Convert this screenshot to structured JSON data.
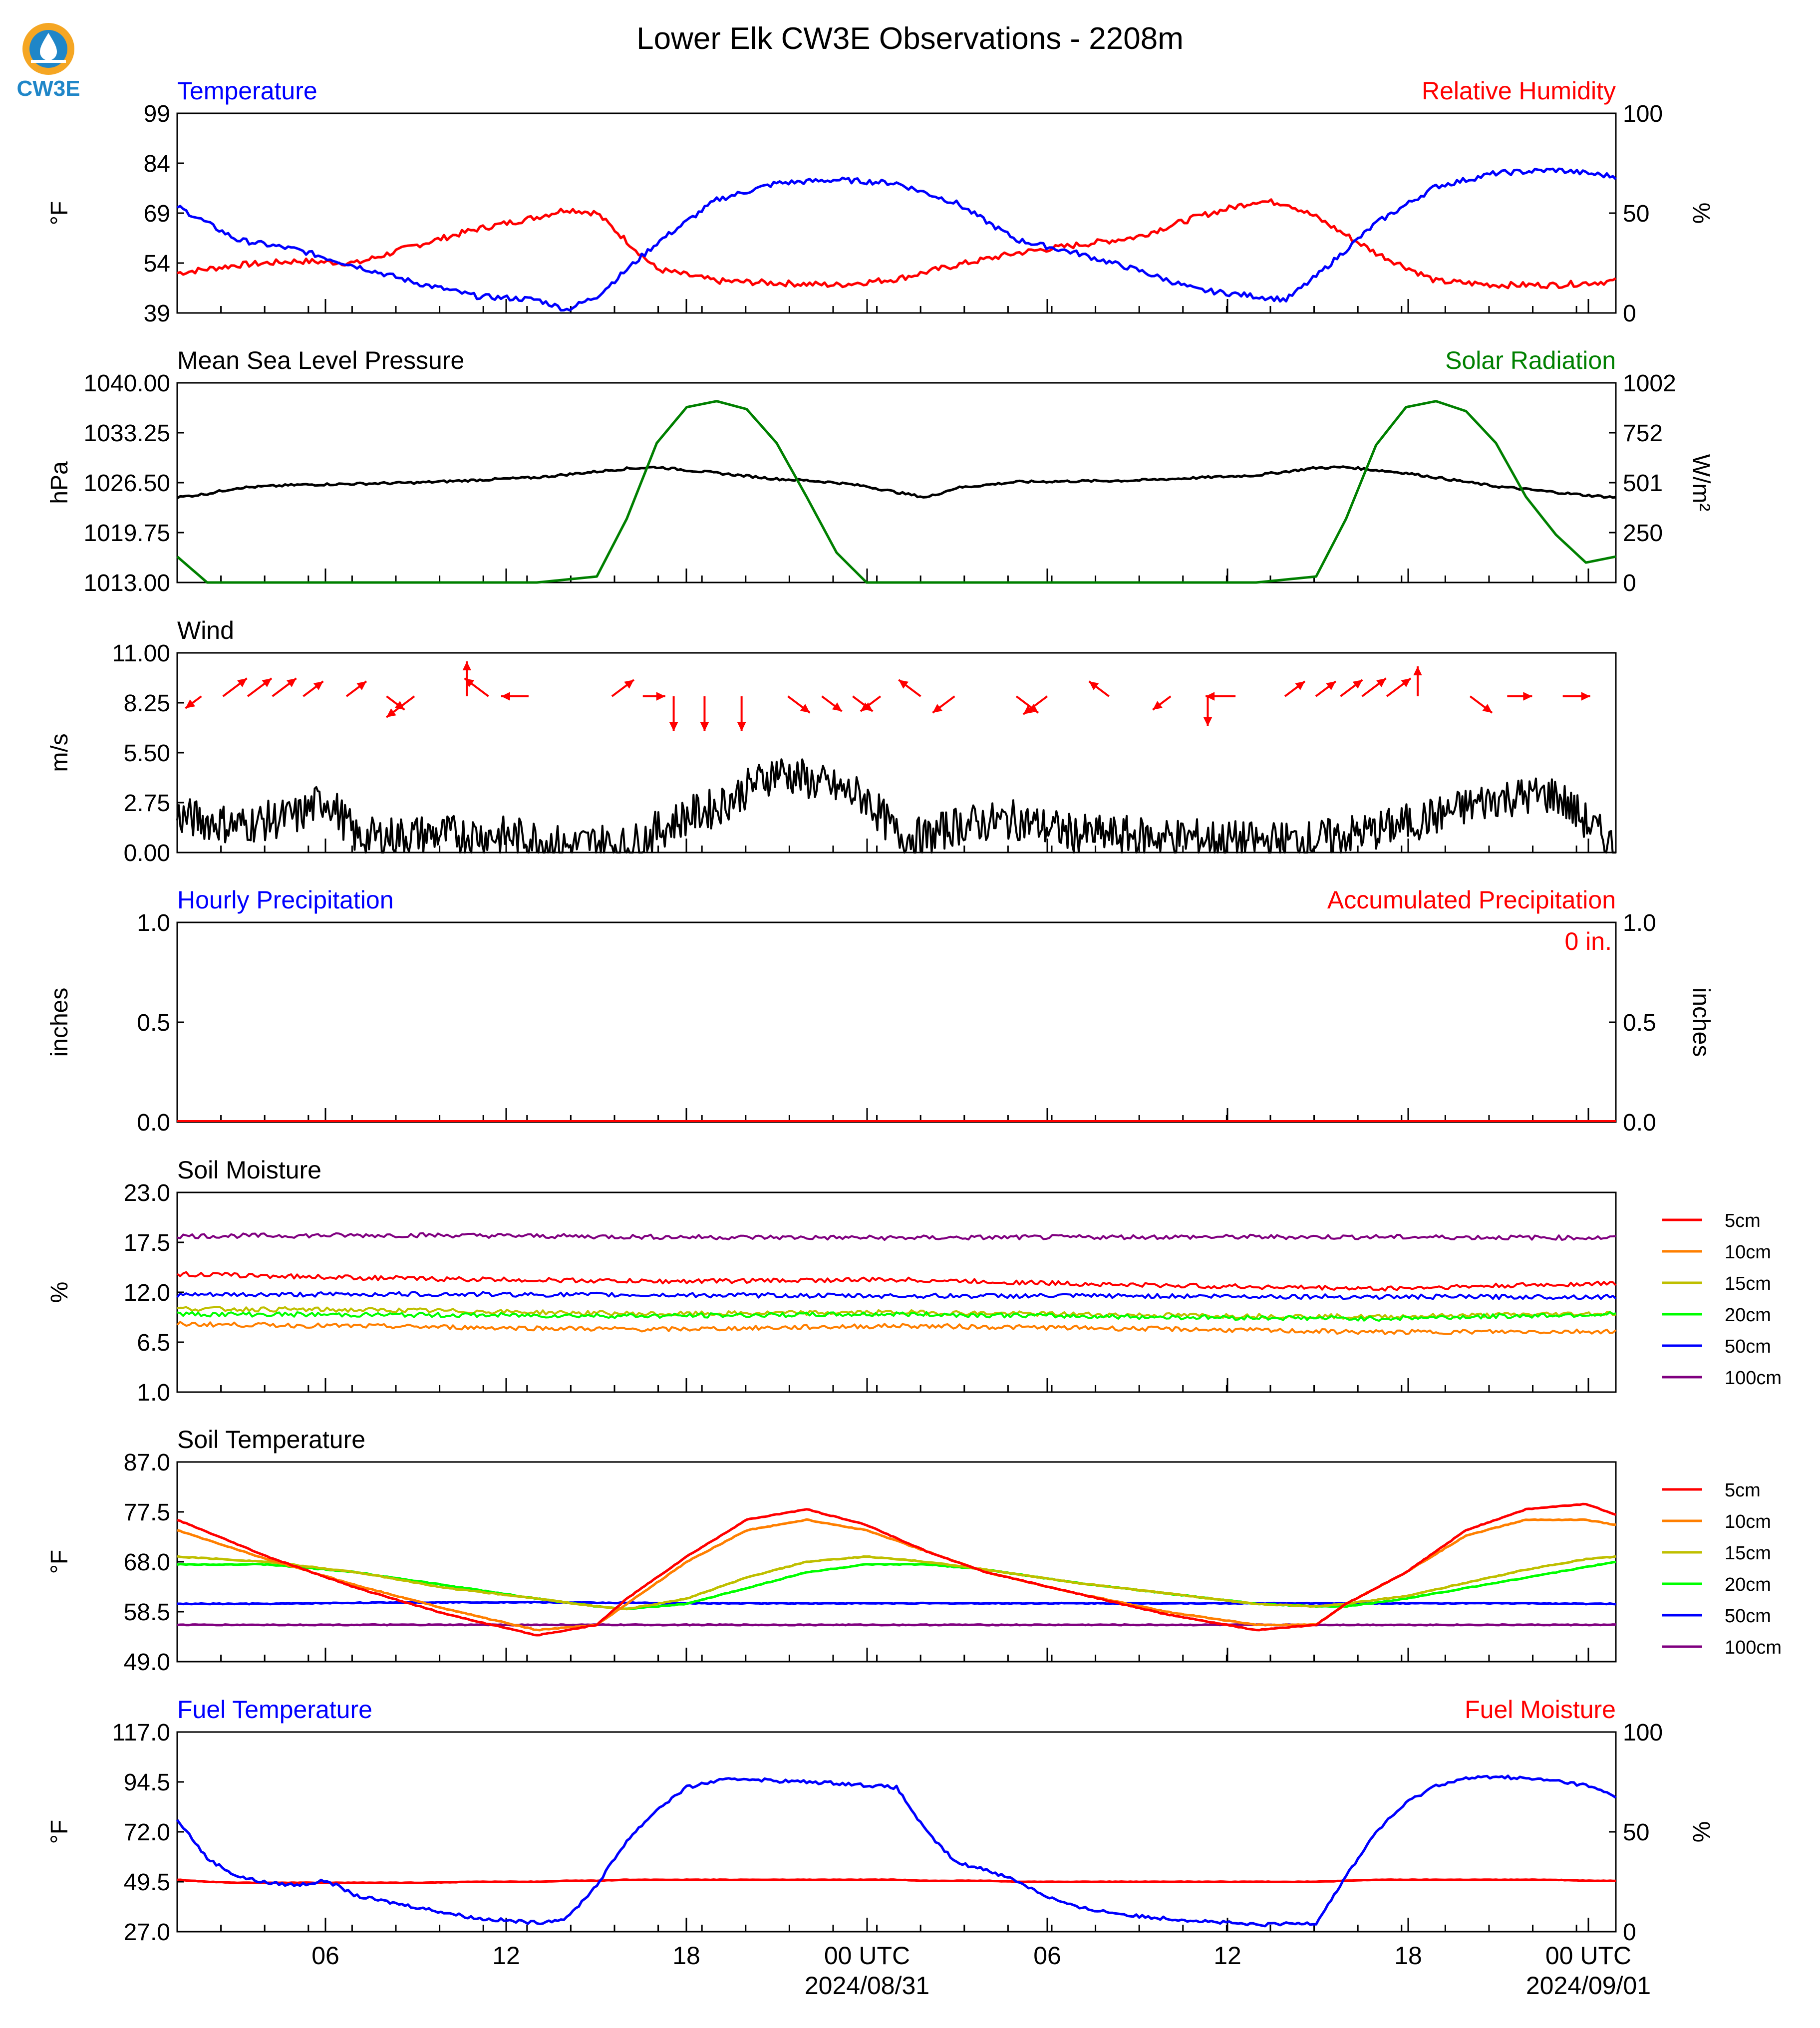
{
  "title": "Lower Elk CW3E Observations - 2208m",
  "logo": {
    "text": "CW3E",
    "icon": "cw3e-logo-icon",
    "ring_color": "#f5a623",
    "water_color": "#1f86c8"
  },
  "x_ticks": [
    "06",
    "12",
    "18",
    "00 UTC",
    "06",
    "12",
    "18",
    "00 UTC"
  ],
  "x_dates": [
    "2024/08/31",
    "2024/09/01"
  ],
  "colors": {
    "blue": "#0000ff",
    "red": "#ff0000",
    "green": "#008000",
    "black": "#000000",
    "d5": "#ff0000",
    "d10": "#ff7f00",
    "d15": "#bfbf00",
    "d20": "#00ff00",
    "d50": "#0000ff",
    "d100": "#800080"
  },
  "panels": {
    "temp": {
      "left_title": "Temperature",
      "right_title": "Relative Humidity",
      "left_unit": "°F",
      "right_unit": "%",
      "left_ticks": [
        "99",
        "84",
        "69",
        "54",
        "39"
      ],
      "right_ticks": [
        "100",
        "50",
        "0"
      ],
      "left_range": [
        39,
        99
      ],
      "right_range": [
        0,
        100
      ]
    },
    "pressure": {
      "left_title": "Mean Sea Level Pressure",
      "right_title": "Solar Radiation",
      "left_unit": "hPa",
      "right_unit": "W/m²",
      "left_ticks": [
        "1040.00",
        "1033.25",
        "1026.50",
        "1019.75",
        "1013.00"
      ],
      "right_ticks": [
        "1002",
        "752",
        "501",
        "250",
        "0"
      ],
      "left_range": [
        1013,
        1040
      ],
      "right_range": [
        0,
        1002
      ]
    },
    "wind": {
      "left_title": "Wind",
      "left_unit": "m/s",
      "left_ticks": [
        "11.00",
        "8.25",
        "5.50",
        "2.75",
        "0.00"
      ],
      "left_range": [
        0,
        11
      ]
    },
    "precip": {
      "left_title": "Hourly Precipitation",
      "right_title": "Accumulated Precipitation",
      "left_unit": "inches",
      "right_unit": "inches",
      "left_ticks": [
        "1.0",
        "0.5",
        "0.0"
      ],
      "right_ticks": [
        "1.0",
        "0.5",
        "0.0"
      ],
      "accum_label": "0 in.",
      "left_range": [
        0,
        1
      ],
      "right_range": [
        0,
        1
      ]
    },
    "soil_moist": {
      "left_title": "Soil Moisture",
      "left_unit": "%",
      "left_ticks": [
        "23.0",
        "17.5",
        "12.0",
        "6.5",
        "1.0"
      ],
      "left_range": [
        1,
        23
      ],
      "legend": [
        "5cm",
        "10cm",
        "15cm",
        "20cm",
        "50cm",
        "100cm"
      ]
    },
    "soil_temp": {
      "left_title": "Soil Temperature",
      "left_unit": "°F",
      "left_ticks": [
        "87.0",
        "77.5",
        "68.0",
        "58.5",
        "49.0"
      ],
      "left_range": [
        49,
        87
      ],
      "legend": [
        "5cm",
        "10cm",
        "15cm",
        "20cm",
        "50cm",
        "100cm"
      ]
    },
    "fuel": {
      "left_title": "Fuel Temperature",
      "right_title": "Fuel Moisture",
      "left_unit": "°F",
      "right_unit": "%",
      "left_ticks": [
        "117.0",
        "94.5",
        "72.0",
        "49.5",
        "27.0"
      ],
      "right_ticks": [
        "100",
        "50",
        "0"
      ],
      "left_range": [
        27,
        117
      ],
      "right_range": [
        0,
        100
      ]
    }
  },
  "chart_data": [
    {
      "type": "line",
      "title": "Temperature / Relative Humidity",
      "x_hours": [
        0,
        2,
        4,
        6,
        8,
        10,
        12,
        13,
        14,
        16,
        18,
        20,
        22,
        24,
        26,
        28,
        30,
        32,
        34,
        36,
        37,
        38,
        40,
        42,
        44,
        46,
        48
      ],
      "series": [
        {
          "name": "Temperature",
          "axis": "left",
          "values": [
            71,
            61,
            58,
            53,
            48,
            44,
            43,
            40,
            44,
            60,
            73,
            78,
            79,
            78,
            72,
            61,
            57,
            52,
            46,
            44,
            43,
            50,
            66,
            77,
            81,
            82,
            80
          ]
        },
        {
          "name": "Relative Humidity",
          "axis": "right",
          "values": [
            20,
            24,
            26,
            25,
            34,
            42,
            48,
            52,
            50,
            22,
            16,
            15,
            14,
            17,
            24,
            30,
            34,
            38,
            48,
            56,
            55,
            48,
            30,
            16,
            14,
            14,
            16
          ]
        }
      ]
    },
    {
      "type": "line",
      "title": "Mean Sea Level Pressure / Solar Radiation",
      "x_hours": [
        0,
        1,
        2,
        4,
        8,
        12,
        14,
        15,
        16,
        17,
        18,
        19,
        20,
        21,
        22,
        23,
        24,
        25,
        26,
        28,
        32,
        36,
        38,
        39,
        40,
        41,
        42,
        43,
        44,
        45,
        46,
        47,
        48
      ],
      "series": [
        {
          "name": "Mean Sea Level Pressure",
          "axis": "left",
          "values": [
            1024.5,
            1025,
            1025.8,
            1026.2,
            1026.5,
            1027.2,
            1028,
            1028.4,
            1028.6,
            1028.2,
            1027.8,
            1027.4,
            1027,
            1026.8,
            1026.5,
            1026,
            1025.2,
            1024.5,
            1025.8,
            1026.6,
            1026.8,
            1027.5,
            1028.5,
            1028.6,
            1028.2,
            1027.8,
            1027.2,
            1026.6,
            1026,
            1025.6,
            1025.2,
            1024.8,
            1024.5
          ]
        },
        {
          "name": "Solar Radiation",
          "axis": "right",
          "values": [
            130,
            0,
            0,
            0,
            0,
            0,
            30,
            320,
            700,
            880,
            910,
            870,
            700,
            430,
            150,
            0,
            0,
            0,
            0,
            0,
            0,
            0,
            30,
            320,
            690,
            880,
            910,
            860,
            700,
            430,
            240,
            100,
            130
          ]
        }
      ]
    },
    {
      "type": "line",
      "title": "Wind",
      "x_hours": [
        0,
        2,
        4,
        5,
        6,
        8,
        10,
        12,
        13,
        14,
        15,
        16,
        17,
        18,
        19,
        20,
        21,
        22,
        23,
        24,
        25,
        26,
        28,
        30,
        32,
        34,
        36,
        38,
        40,
        42,
        44,
        46,
        48
      ],
      "series": [
        {
          "name": "Wind speed",
          "values": [
            2,
            1.5,
            2,
            3,
            0.8,
            1,
            1,
            0.8,
            0.3,
            0.6,
            0.3,
            1.2,
            2,
            2.5,
            3.5,
            4.5,
            4,
            3.5,
            3,
            1,
            0.8,
            1.5,
            1.8,
            1,
            0.9,
            0.8,
            0.6,
            0.7,
            1.2,
            2,
            3,
            3.2,
            0.2
          ]
        }
      ],
      "arrows_note": "wind direction arrows drawn above speed trace"
    },
    {
      "type": "line",
      "title": "Hourly / Accumulated Precipitation",
      "x_hours": [
        0,
        48
      ],
      "series": [
        {
          "name": "Hourly Precipitation",
          "axis": "left",
          "values": [
            0,
            0
          ]
        },
        {
          "name": "Accumulated Precipitation",
          "axis": "right",
          "values": [
            0,
            0
          ]
        }
      ]
    },
    {
      "type": "line",
      "title": "Soil Moisture",
      "x_hours": [
        0,
        8,
        16,
        24,
        32,
        40,
        48
      ],
      "series": [
        {
          "name": "5cm",
          "values": [
            14,
            13.5,
            13.2,
            13.4,
            12.8,
            12.4,
            13
          ]
        },
        {
          "name": "10cm",
          "values": [
            8.5,
            8.2,
            7.9,
            8.3,
            8,
            7.6,
            7.7
          ]
        },
        {
          "name": "15cm",
          "values": [
            10.2,
            10,
            9.6,
            9.8,
            9.5,
            9.3,
            9.7
          ]
        },
        {
          "name": "20cm",
          "values": [
            9.6,
            9.5,
            9.4,
            9.6,
            9.3,
            9.1,
            9.6
          ]
        },
        {
          "name": "50cm",
          "values": [
            11.7,
            11.8,
            11.7,
            11.6,
            11.6,
            11.5,
            11.5
          ]
        },
        {
          "name": "100cm",
          "values": [
            18.2,
            18.3,
            18.1,
            18,
            18.1,
            18.1,
            18
          ]
        }
      ]
    },
    {
      "type": "line",
      "title": "Soil Temperature",
      "x_hours": [
        0,
        3,
        6,
        9,
        12,
        14,
        15,
        17,
        19,
        21,
        23,
        25,
        27,
        30,
        33,
        36,
        38,
        39,
        41,
        43,
        45,
        47,
        48
      ],
      "series": [
        {
          "name": "5cm",
          "values": [
            76,
            69,
            63,
            58,
            54,
            56,
            61,
            69,
            76,
            78,
            75,
            70,
            66,
            62,
            58,
            55,
            56,
            60,
            66,
            74,
            78,
            79,
            77
          ]
        },
        {
          "name": "10cm",
          "values": [
            74,
            68.5,
            63.5,
            59,
            55,
            56,
            60,
            68,
            74,
            76,
            74,
            70,
            66,
            62,
            58.5,
            56,
            56,
            60,
            66,
            73,
            76,
            76,
            75
          ]
        },
        {
          "name": "15cm",
          "values": [
            69,
            68,
            66,
            63,
            61,
            59.5,
            59,
            61,
            65,
            68,
            69,
            68,
            66.5,
            64,
            62,
            60,
            59.5,
            60,
            61.5,
            64,
            66.5,
            68.5,
            69
          ]
        },
        {
          "name": "20cm",
          "values": [
            67.5,
            67.5,
            66,
            63.5,
            61,
            59.5,
            59,
            60,
            63,
            66,
            67.5,
            67.5,
            66.5,
            64,
            62,
            60,
            59.5,
            59.5,
            61,
            63,
            65,
            67,
            68
          ]
        },
        {
          "name": "50cm",
          "values": [
            60,
            60,
            60.2,
            60.3,
            60.3,
            60.2,
            60.2,
            60.1,
            60.1,
            60.1,
            60.1,
            60.1,
            60.1,
            60.1,
            60.1,
            60.1,
            60.1,
            60.1,
            60.1,
            60.1,
            60.1,
            60,
            60
          ]
        },
        {
          "name": "100cm",
          "values": [
            56,
            56,
            56,
            56,
            56,
            56,
            56,
            56,
            56,
            56,
            56,
            56,
            56,
            56,
            56,
            56,
            56,
            56,
            56,
            56,
            56,
            56,
            56
          ]
        }
      ]
    },
    {
      "type": "line",
      "title": "Fuel Temperature / Fuel Moisture",
      "x_hours": [
        0,
        1,
        2,
        3,
        4,
        5,
        6,
        8,
        10,
        12,
        13,
        14,
        15,
        16,
        17,
        18,
        19,
        20,
        22,
        24,
        25,
        26,
        27,
        28,
        29,
        30,
        32,
        34,
        36,
        38,
        39,
        40,
        41,
        42,
        43,
        44,
        46,
        47,
        48
      ],
      "series": [
        {
          "name": "Fuel Temperature",
          "axis": "left",
          "values": [
            78,
            60,
            52,
            49,
            48,
            50,
            43,
            38,
            33,
            31,
            33,
            48,
            68,
            82,
            92,
            95,
            96,
            95,
            94,
            92,
            72,
            58,
            55,
            50,
            43,
            38,
            34,
            32,
            30,
            31,
            52,
            72,
            85,
            93,
            96,
            97,
            95,
            93,
            88
          ]
        },
        {
          "name": "Fuel Moisture",
          "axis": "right",
          "values": [
            26,
            25,
            24.5,
            24.5,
            24.5,
            24.5,
            24.5,
            24.5,
            25,
            25,
            25.5,
            25.5,
            26,
            26,
            26,
            26,
            26,
            26,
            26,
            26,
            25.5,
            25.5,
            25.5,
            25,
            25,
            25,
            25,
            25,
            25,
            25,
            25.5,
            26,
            26,
            26,
            26,
            26,
            26,
            25.5,
            25.5
          ]
        }
      ]
    }
  ]
}
